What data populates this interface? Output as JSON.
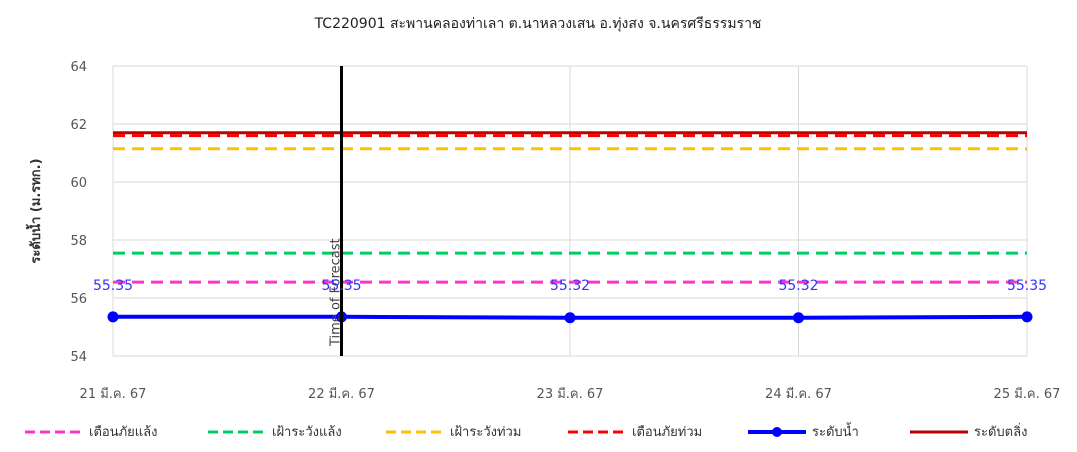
{
  "chart_data": {
    "type": "line",
    "title": "TC220901 สะพานคลองท่าเลา ต.นาหลวงเสน อ.ทุ่งสง จ.นครศรีธรรมราช",
    "ylabel": "ระดับน้ำ (ม.รทก.)",
    "xlabel": "",
    "ylim": [
      54,
      64
    ],
    "yticks": [
      54,
      56,
      58,
      60,
      62,
      64
    ],
    "grid": true,
    "categories": [
      "21 มี.ค. 67",
      "22 มี.ค. 67",
      "23 มี.ค. 67",
      "24 มี.ค. 67",
      "25 มี.ค. 67"
    ],
    "series": [
      {
        "name": "เตือนภัยแล้ง",
        "values": [
          56.55,
          56.55,
          56.55,
          56.55,
          56.55
        ],
        "color": "#ff33cc",
        "style": "dashed"
      },
      {
        "name": "เฝ้าระวังแล้ง",
        "values": [
          57.55,
          57.55,
          57.55,
          57.55,
          57.55
        ],
        "color": "#00cc66",
        "style": "dashed"
      },
      {
        "name": "เฝ้าระวังท่วม",
        "values": [
          61.15,
          61.15,
          61.15,
          61.15,
          61.15
        ],
        "color": "#ffc000",
        "style": "dashed"
      },
      {
        "name": "เตือนภัยท่วม",
        "values": [
          61.6,
          61.6,
          61.6,
          61.6,
          61.6
        ],
        "color": "#ff0000",
        "style": "dashed"
      },
      {
        "name": "ระดับน้ำ",
        "values": [
          55.35,
          55.35,
          55.32,
          55.32,
          55.35
        ],
        "color": "#0000ff",
        "style": "solid-marker",
        "data_labels": [
          "55.35",
          "55.35",
          "55.32",
          "55.32",
          "55.35"
        ]
      },
      {
        "name": "ระดับตลิ่ง",
        "values": [
          61.7,
          61.7,
          61.7,
          61.7,
          61.7
        ],
        "color": "#c00000",
        "style": "solid"
      }
    ],
    "annotations": [
      {
        "text": "Time of Forecast",
        "x_index": 1
      }
    ],
    "legend_position": "bottom"
  }
}
